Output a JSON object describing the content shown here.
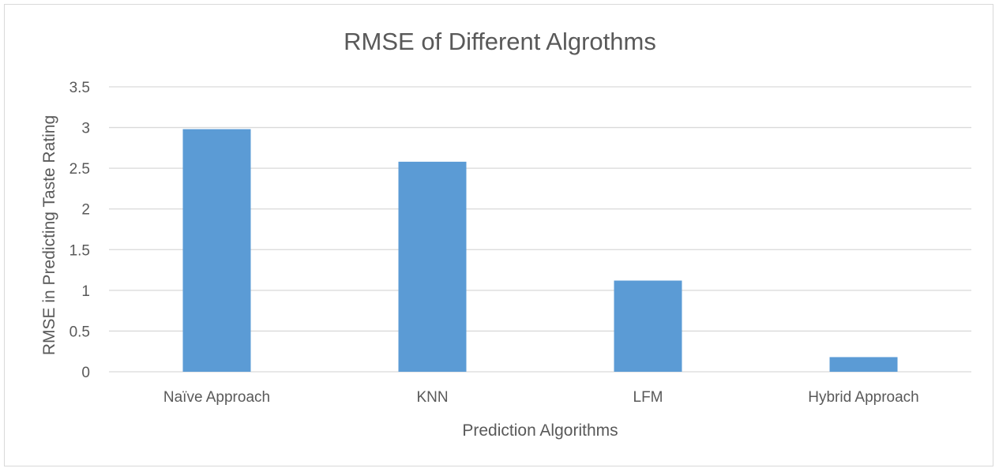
{
  "chart_data": {
    "type": "bar",
    "title": "RMSE of Different Algrothms",
    "xlabel": "Prediction Algorithms",
    "ylabel": "RMSE in Predicting Taste Rating",
    "categories": [
      "Naïve Approach",
      "KNN",
      "LFM",
      "Hybrid Approach"
    ],
    "values": [
      2.98,
      2.58,
      1.12,
      0.18
    ],
    "ylim": [
      0,
      3.5
    ],
    "yticks": [
      0,
      0.5,
      1,
      1.5,
      2,
      2.5,
      3,
      3.5
    ],
    "ytick_labels": [
      "0",
      "0.5",
      "1",
      "1.5",
      "2",
      "2.5",
      "3",
      "3.5"
    ],
    "grid": true,
    "legend": "none",
    "colors": {
      "bar": "#5b9bd5",
      "grid": "#d9d9d9",
      "text": "#595959"
    }
  }
}
